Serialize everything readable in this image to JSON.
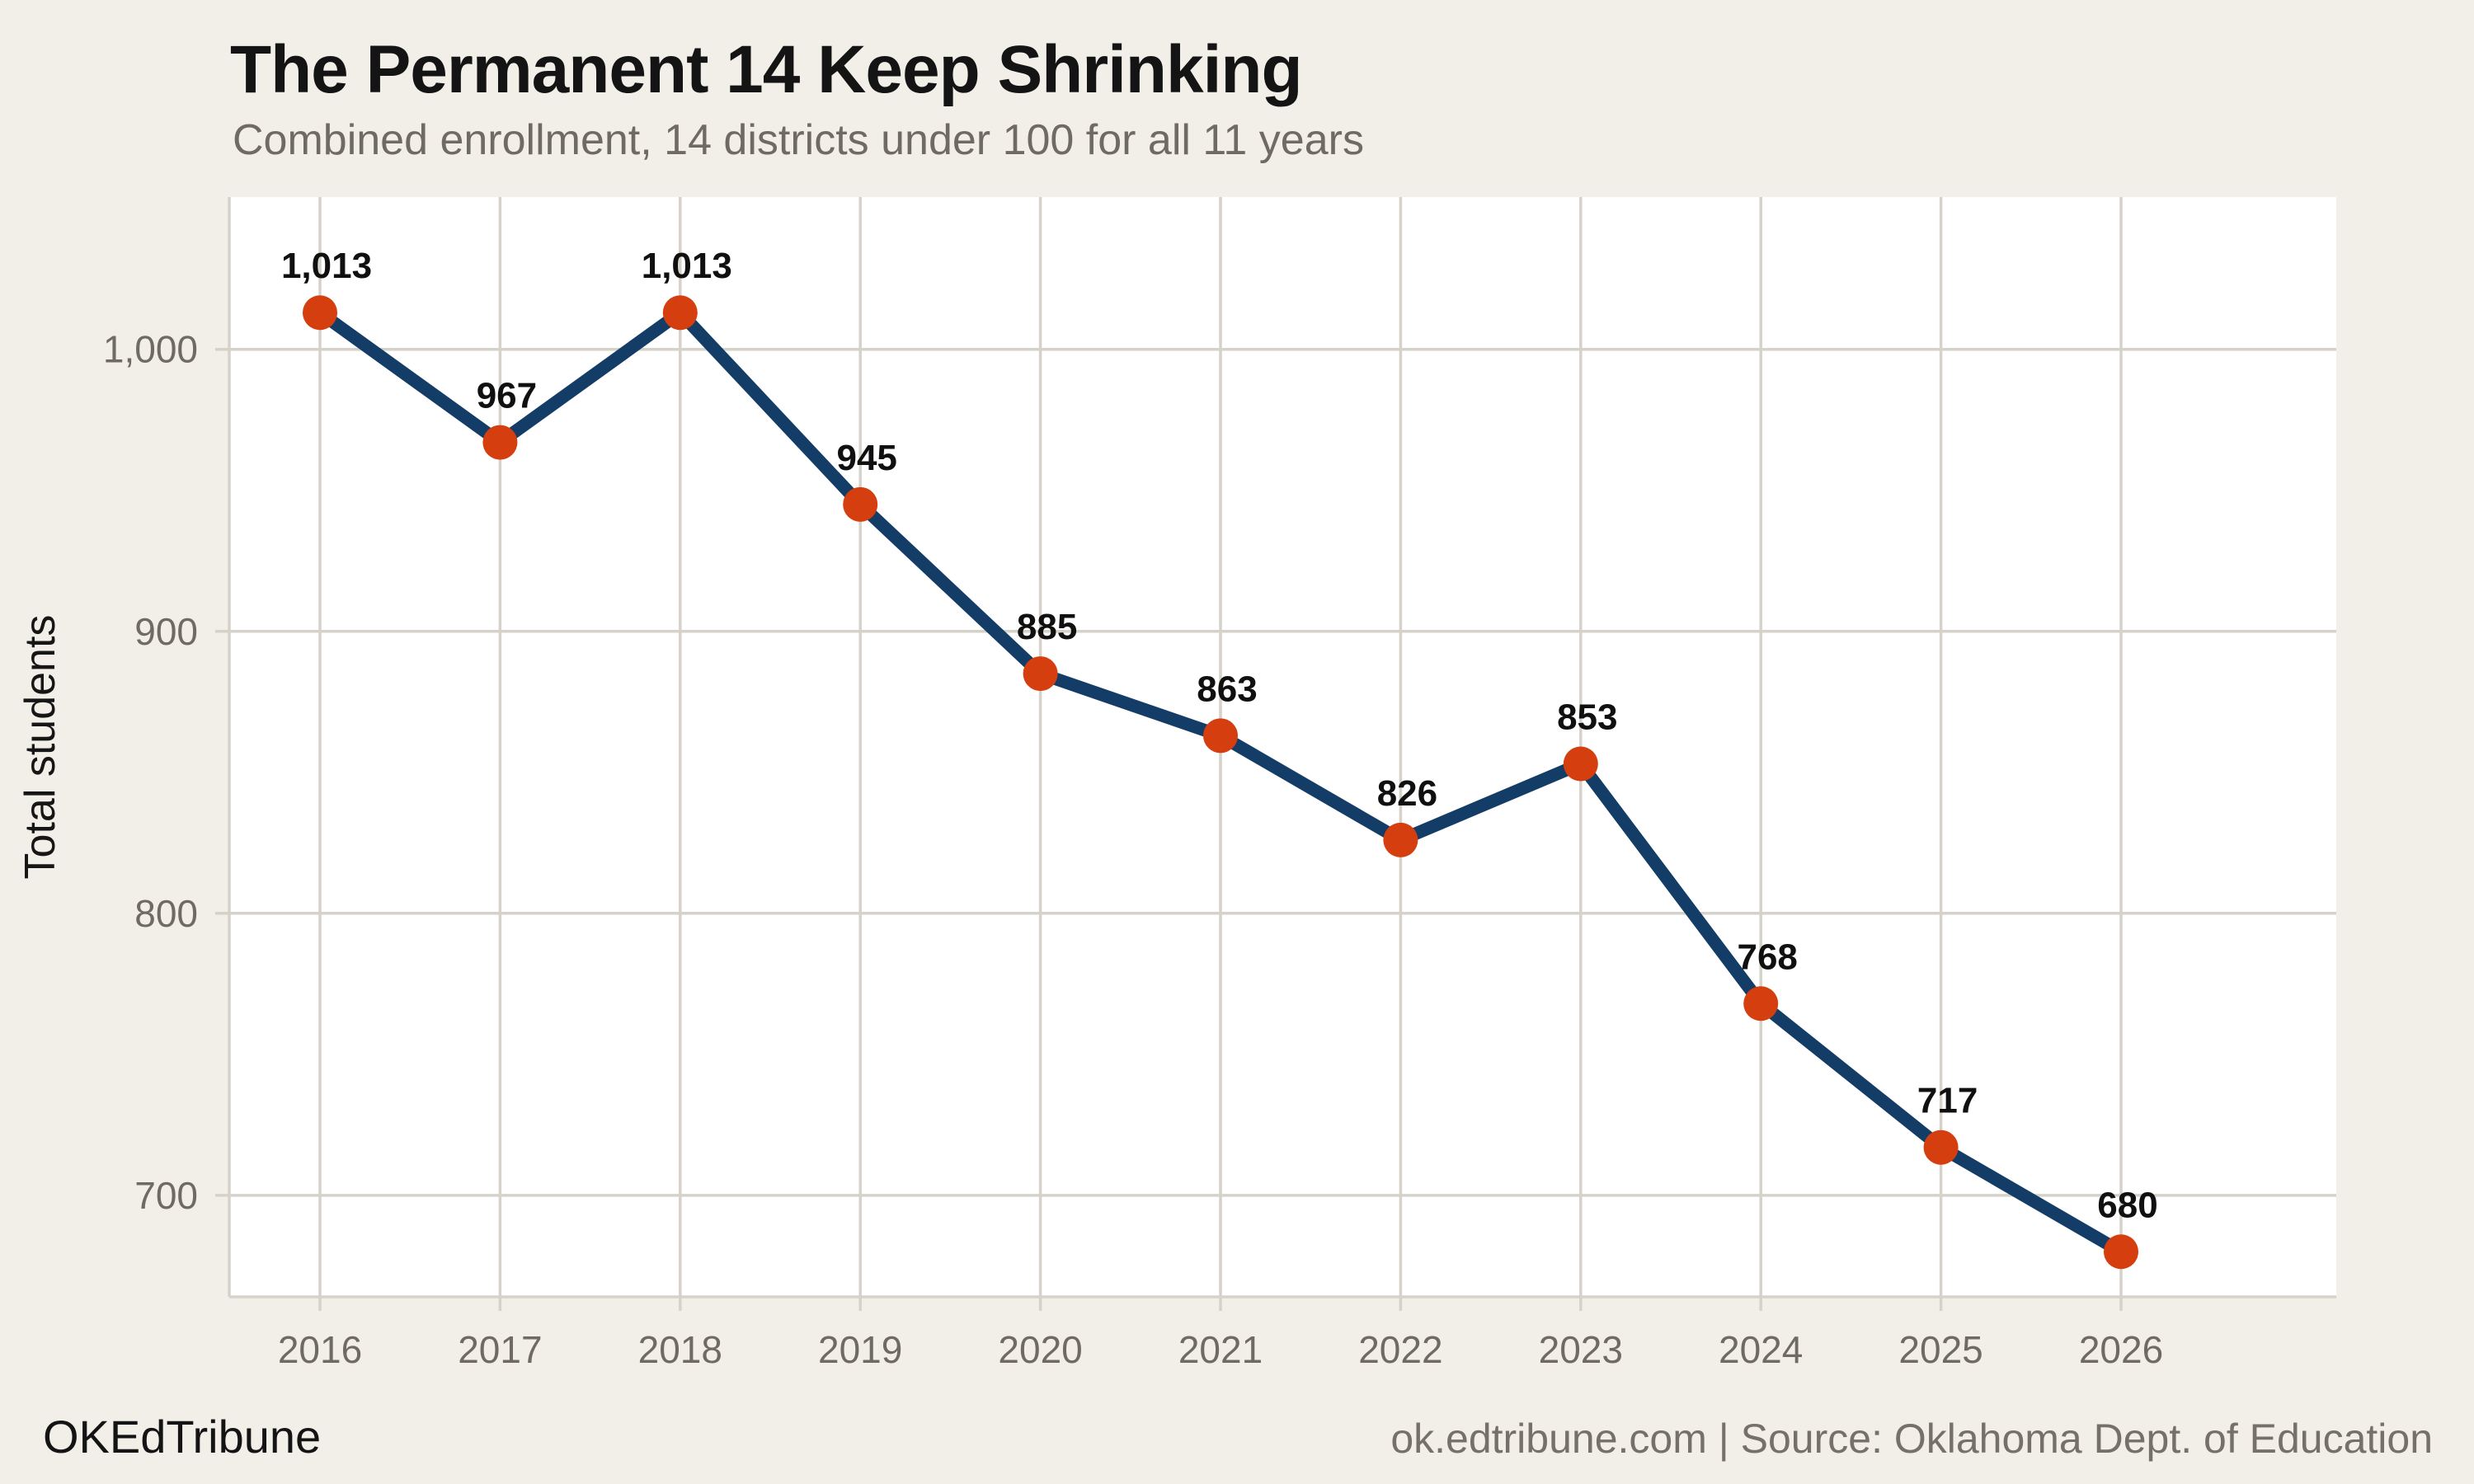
{
  "page": {
    "background_color": "#f2efe8"
  },
  "header": {
    "title": "The Permanent 14 Keep Shrinking",
    "subtitle": "Combined enrollment, 14 districts under 100 for all 11 years"
  },
  "footer": {
    "brand": "OKEdTribune",
    "source": "ok.edtribune.com | Source: Oklahoma Dept. of Education"
  },
  "chart_data": {
    "type": "line",
    "title": "The Permanent 14 Keep Shrinking",
    "subtitle": "Combined enrollment, 14 districts under 100 for all 11 years",
    "xlabel": "",
    "ylabel": "Total students",
    "x": [
      2016,
      2017,
      2018,
      2019,
      2020,
      2021,
      2022,
      2023,
      2024,
      2025,
      2026
    ],
    "x_tick_labels": [
      "2016",
      "2017",
      "2018",
      "2019",
      "2020",
      "2021",
      "2022",
      "2023",
      "2024",
      "2025",
      "2026"
    ],
    "values": [
      1013,
      967,
      1013,
      945,
      885,
      863,
      826,
      853,
      768,
      717,
      680
    ],
    "point_labels": [
      "1,013",
      "967",
      "1,013",
      "945",
      "885",
      "863",
      "826",
      "853",
      "768",
      "717",
      "680"
    ],
    "y_ticks": [
      700,
      800,
      900,
      1000
    ],
    "y_tick_labels": [
      "700",
      "800",
      "900",
      "1,000"
    ],
    "ylim": [
      664,
      1054
    ],
    "grid": true,
    "legend_position": "none",
    "colors": {
      "line": "#133d66",
      "point": "#d53f10",
      "grid": "#d6d2c9",
      "plot_background": "#ffffff",
      "page_background": "#f2efe8",
      "tick_text": "#6f6b64",
      "label_text": "#101010",
      "axis_title_text": "#161616"
    }
  }
}
